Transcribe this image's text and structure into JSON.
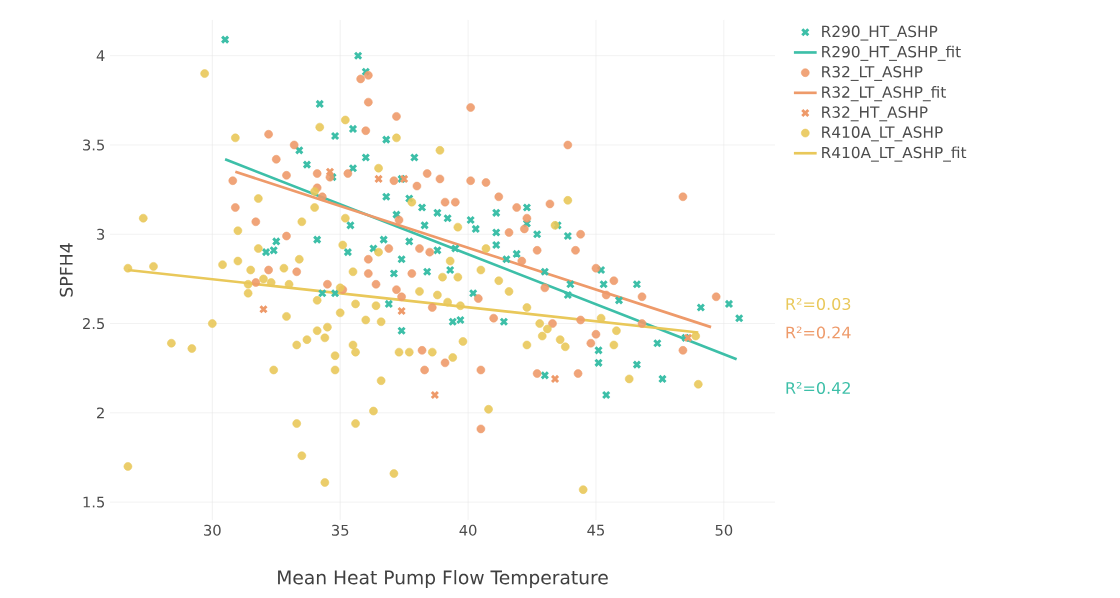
{
  "chart_data": {
    "type": "scatter",
    "xlabel": "Mean Heat Pump Flow Temperature",
    "ylabel": "SPFH4",
    "xlim": [
      26,
      52
    ],
    "ylim": [
      1.4,
      4.2
    ],
    "xticks": [
      30,
      35,
      40,
      45,
      50
    ],
    "yticks": [
      1.5,
      2,
      2.5,
      3,
      3.5,
      4
    ],
    "grid": true,
    "legend": "right",
    "series": [
      {
        "name": "R290_HT_ASHP",
        "type": "scatter",
        "marker": "cross",
        "color": "#3dbfa8",
        "x": [
          30.5,
          35.7,
          34.2,
          34.8,
          35.5,
          36.0,
          33.4,
          36.0,
          33.7,
          34.7,
          36.8,
          35.5,
          36.8,
          37.2,
          37.9,
          37.4,
          38.2,
          37.7,
          38.3,
          38.8,
          39.2,
          40.1,
          41.1,
          41.1,
          42.3,
          42.7,
          43.5,
          43.0,
          41.9,
          41.5,
          41.1,
          40.3,
          39.5,
          39.3,
          38.8,
          38.4,
          37.7,
          37.4,
          37.1,
          36.7,
          36.3,
          35.4,
          35.3,
          34.1,
          32.5,
          32.4,
          32.1,
          34.3,
          34.8,
          36.9,
          37.4,
          39.4,
          39.7,
          40.2,
          41.4,
          43.0,
          44.0,
          43.9,
          43.9,
          45.2,
          45.3,
          45.1,
          45.1,
          45.4,
          45.9,
          46.6,
          46.6,
          47.4,
          47.6,
          48.5,
          49.1,
          50.2,
          50.6,
          42.3
        ],
        "values": [
          4.09,
          4.0,
          3.73,
          3.55,
          3.59,
          3.91,
          3.47,
          3.43,
          3.39,
          3.32,
          3.53,
          3.37,
          3.21,
          3.11,
          3.43,
          3.31,
          3.15,
          3.2,
          3.05,
          3.12,
          3.09,
          3.08,
          3.12,
          3.01,
          3.15,
          3.0,
          3.05,
          2.79,
          2.89,
          2.86,
          2.94,
          3.03,
          2.92,
          2.8,
          2.91,
          2.79,
          2.96,
          2.86,
          2.78,
          2.97,
          2.92,
          3.05,
          2.9,
          2.97,
          2.96,
          2.91,
          2.9,
          2.67,
          2.67,
          2.61,
          2.46,
          2.51,
          2.52,
          2.67,
          2.51,
          2.21,
          2.72,
          2.66,
          2.99,
          2.8,
          2.72,
          2.35,
          2.28,
          2.1,
          2.63,
          2.72,
          2.27,
          2.39,
          2.19,
          2.42,
          2.59,
          2.61,
          2.53,
          3.06
        ]
      },
      {
        "name": "R290_HT_ASHP_fit",
        "type": "line",
        "marker": "none",
        "color": "#3dbfa8",
        "x": [
          30.5,
          50.5
        ],
        "values": [
          3.42,
          2.3
        ]
      },
      {
        "name": "R32_LT_ASHP",
        "type": "scatter",
        "marker": "circle",
        "color": "#ee9a6a",
        "x": [
          30.9,
          30.8,
          32.2,
          32.5,
          33.2,
          32.9,
          34.1,
          34.1,
          34.3,
          35.8,
          36.1,
          36.1,
          36.0,
          37.2,
          40.1,
          35.3,
          37.1,
          38.0,
          38.4,
          38.9,
          39.5,
          39.1,
          40.1,
          40.7,
          41.2,
          41.9,
          42.3,
          43.2,
          43.9,
          44.4,
          44.2,
          42.2,
          42.7,
          42.1,
          41.6,
          43.0,
          40.4,
          38.5,
          38.1,
          37.8,
          37.2,
          37.4,
          36.9,
          36.1,
          36.1,
          36.4,
          35.1,
          34.5,
          33.3,
          32.9,
          31.7,
          31.7,
          32.2,
          37.3,
          34.6,
          38.2,
          38.3,
          39.1,
          40.5,
          40.5,
          41.0,
          42.7,
          44.3,
          43.3,
          44.4,
          44.8,
          45.0,
          45.4,
          46.8,
          46.8,
          48.4,
          48.4,
          49.7,
          45.0,
          45.7,
          38.6
        ],
        "values": [
          3.15,
          3.3,
          3.56,
          3.42,
          3.5,
          3.33,
          3.34,
          3.26,
          3.21,
          3.87,
          3.89,
          3.74,
          3.58,
          3.66,
          3.71,
          3.34,
          3.3,
          3.27,
          3.34,
          3.31,
          3.18,
          3.18,
          3.3,
          3.29,
          3.21,
          3.15,
          3.09,
          3.17,
          3.5,
          3.0,
          2.91,
          3.03,
          2.91,
          2.85,
          3.01,
          2.7,
          2.64,
          2.9,
          2.92,
          2.78,
          2.69,
          2.65,
          2.92,
          2.86,
          2.78,
          2.72,
          2.69,
          2.72,
          2.79,
          2.99,
          3.07,
          2.73,
          2.8,
          3.08,
          3.32,
          2.35,
          2.24,
          2.28,
          2.24,
          1.91,
          2.53,
          2.22,
          2.22,
          2.5,
          2.52,
          2.39,
          2.81,
          2.66,
          2.65,
          2.5,
          3.21,
          2.35,
          2.65,
          2.44,
          2.74,
          2.59
        ]
      },
      {
        "name": "R32_LT_ASHP_fit",
        "type": "line",
        "marker": "none",
        "color": "#ee9a6a",
        "x": [
          30.9,
          49.5
        ],
        "values": [
          3.35,
          2.48
        ]
      },
      {
        "name": "R32_HT_ASHP",
        "type": "scatter",
        "marker": "cross",
        "color": "#ee9a6a",
        "x": [
          36.5,
          37.5,
          32.0,
          38.7,
          37.4,
          43.4,
          34.6,
          48.6
        ],
        "values": [
          3.31,
          3.31,
          2.58,
          2.1,
          2.57,
          2.19,
          3.35,
          2.42
        ]
      },
      {
        "name": "R410A_LT_ASHP",
        "type": "scatter",
        "marker": "circle",
        "color": "#e9c85a",
        "x": [
          29.7,
          30.9,
          27.3,
          26.7,
          27.7,
          28.4,
          29.2,
          30.0,
          31.0,
          31.8,
          31.8,
          31.0,
          31.5,
          30.4,
          31.4,
          31.4,
          32.0,
          32.3,
          32.9,
          33.3,
          32.4,
          32.8,
          33.4,
          33.0,
          34.0,
          34.0,
          34.2,
          33.5,
          34.1,
          34.1,
          33.7,
          34.5,
          35.0,
          35.0,
          34.8,
          34.8,
          35.5,
          35.6,
          35.2,
          35.2,
          35.1,
          35.5,
          35.6,
          36.0,
          36.5,
          36.5,
          37.2,
          37.8,
          36.4,
          36.6,
          37.3,
          37.7,
          36.6,
          36.3,
          33.3,
          33.5,
          34.4,
          37.1,
          35.6,
          38.9,
          39.6,
          39.3,
          39.0,
          38.8,
          39.6,
          39.7,
          39.8,
          39.4,
          39.2,
          38.1,
          38.6,
          40.5,
          40.7,
          40.8,
          41.2,
          41.6,
          42.3,
          42.8,
          42.9,
          43.1,
          43.6,
          43.8,
          43.9,
          43.4,
          44.5,
          45.2,
          45.8,
          46.3,
          45.7,
          49.0,
          48.9,
          26.7,
          34.4,
          42.3
        ],
        "values": [
          3.9,
          3.54,
          3.09,
          2.81,
          2.82,
          2.39,
          2.36,
          2.5,
          3.02,
          3.2,
          2.92,
          2.85,
          2.8,
          2.83,
          2.72,
          2.67,
          2.75,
          2.73,
          2.54,
          2.38,
          2.24,
          2.81,
          2.86,
          2.72,
          3.15,
          3.24,
          3.6,
          3.07,
          2.63,
          2.46,
          2.41,
          2.48,
          2.56,
          2.7,
          2.32,
          2.24,
          2.38,
          2.34,
          3.64,
          3.09,
          2.94,
          2.79,
          2.61,
          2.52,
          2.9,
          3.37,
          3.54,
          3.18,
          2.6,
          2.51,
          2.34,
          2.34,
          2.18,
          2.01,
          1.94,
          1.76,
          1.61,
          1.66,
          1.94,
          3.47,
          3.04,
          2.85,
          2.76,
          2.66,
          2.76,
          2.6,
          2.4,
          2.31,
          2.62,
          2.68,
          2.34,
          2.8,
          2.92,
          2.02,
          2.74,
          2.68,
          2.38,
          2.5,
          2.43,
          2.47,
          2.41,
          2.37,
          3.19,
          3.05,
          1.57,
          2.53,
          2.46,
          2.19,
          2.38,
          2.16,
          2.43,
          1.7,
          2.42,
          2.59
        ]
      },
      {
        "name": "R410A_LT_ASHP_fit",
        "type": "line",
        "marker": "none",
        "color": "#e9c85a",
        "x": [
          26.7,
          49.0
        ],
        "values": [
          2.8,
          2.45
        ]
      }
    ],
    "annotations": [
      "R²=0.42",
      "R²=0.24",
      "R²=0.03"
    ]
  }
}
